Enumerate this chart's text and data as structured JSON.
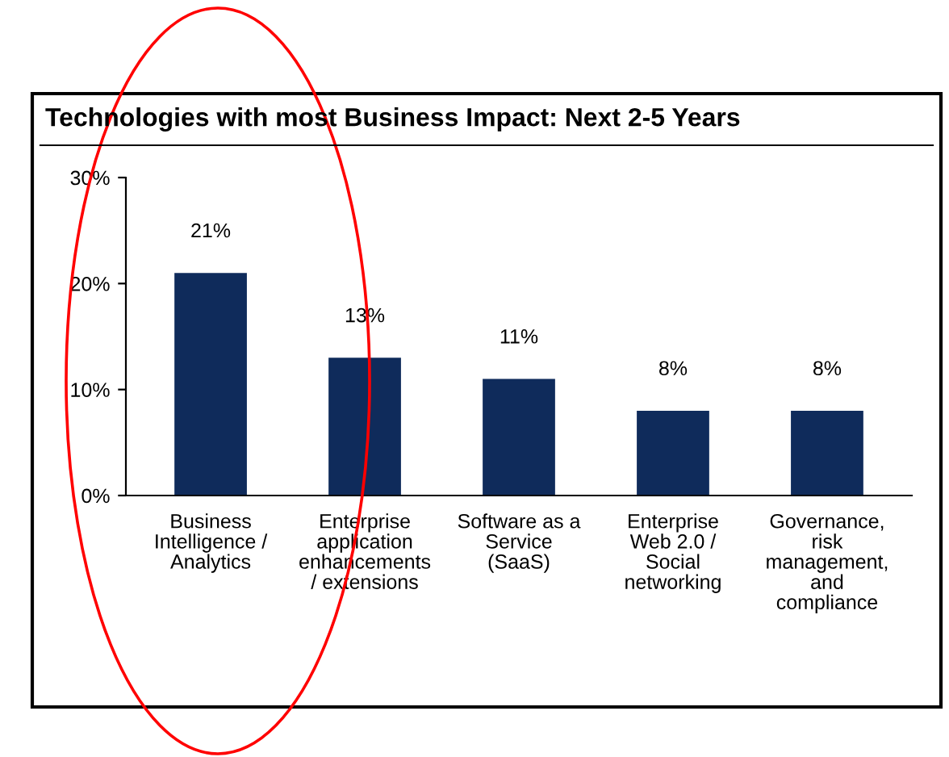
{
  "chart_data": {
    "type": "bar",
    "title": "Technologies with most Business Impact: Next 2-5 Years",
    "categories": [
      "Business\nIntelligence /\nAnalytics",
      "Enterprise\napplication\nenhancements\n/ extensions",
      "Software as a\nService\n(SaaS)",
      "Enterprise\nWeb 2.0 /\nSocial\nnetworking",
      "Governance,\nrisk\nmanagement,\nand\ncompliance"
    ],
    "values": [
      21,
      13,
      11,
      8,
      8
    ],
    "value_labels": [
      "21%",
      "13%",
      "11%",
      "8%",
      "8%"
    ],
    "color": "#0f2b5b",
    "ylim": [
      0,
      30
    ],
    "yticks": [
      {
        "value": 0,
        "label": "0%"
      },
      {
        "value": 10,
        "label": "10%"
      },
      {
        "value": 20,
        "label": "20%"
      },
      {
        "value": 30,
        "label": "30%"
      }
    ],
    "grid": false,
    "legend": false
  }
}
